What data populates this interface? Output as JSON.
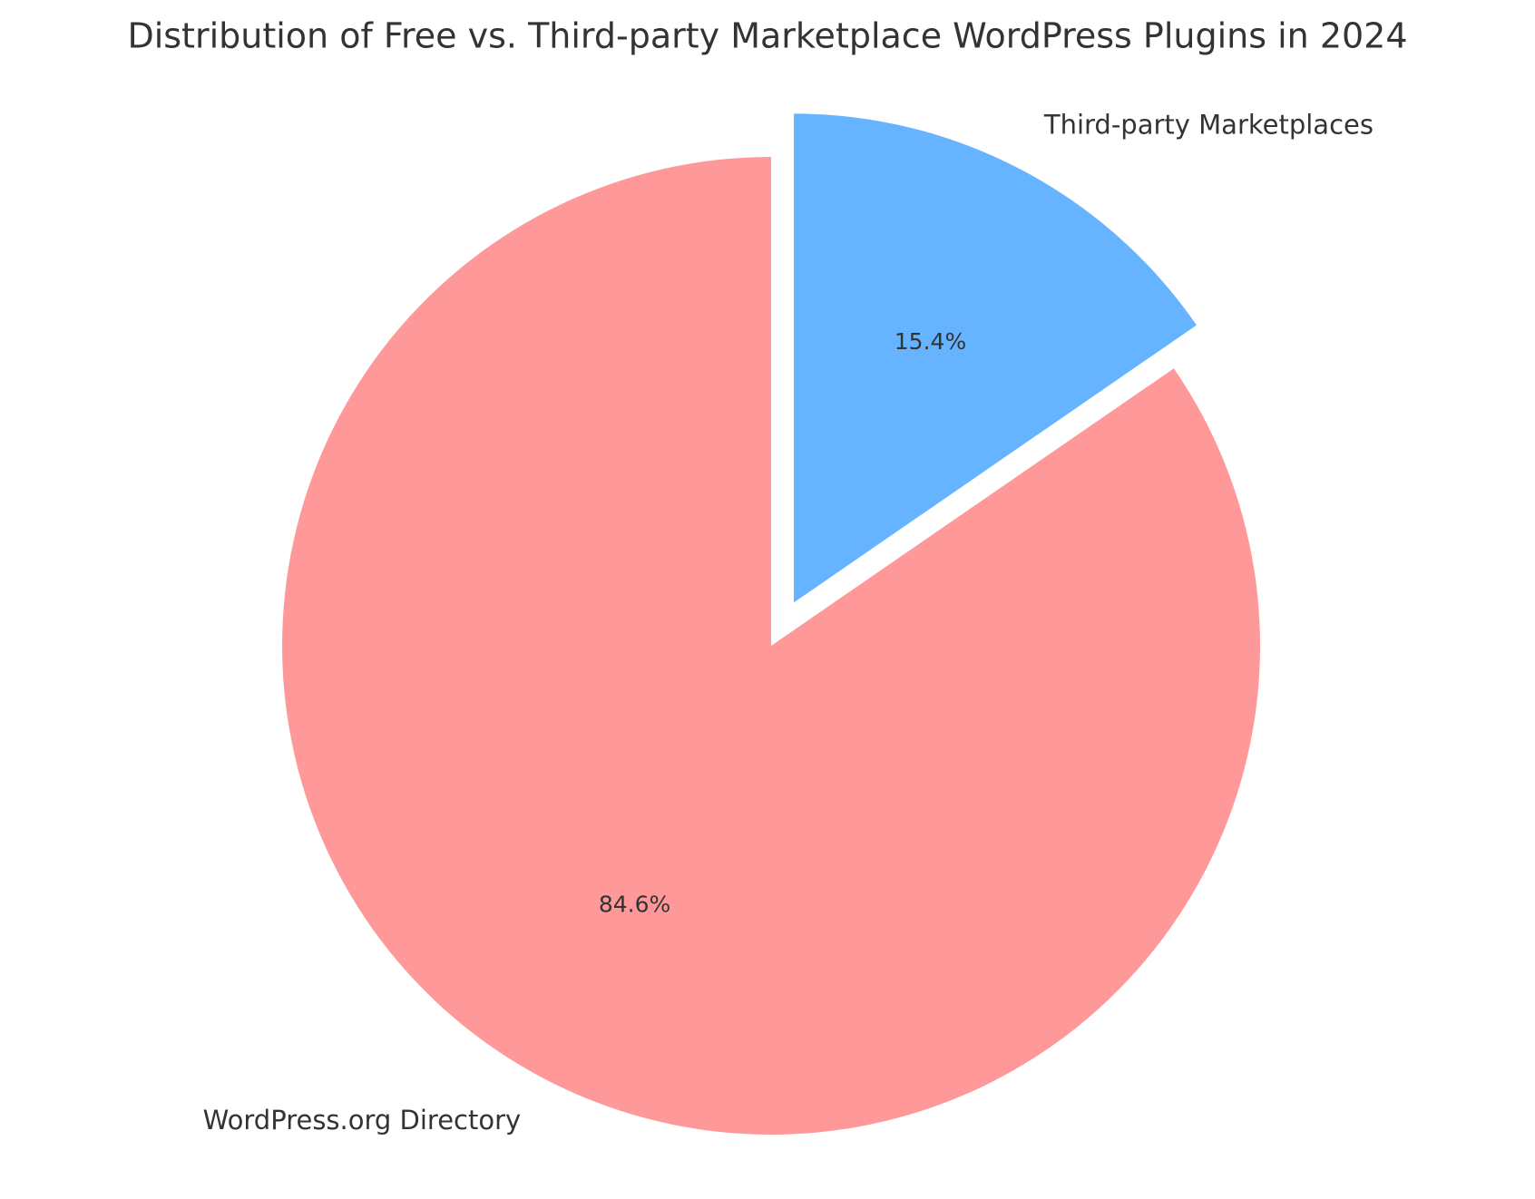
{
  "chart_data": {
    "type": "pie",
    "title": "Distribution of Free vs. Third-party Marketplace WordPress Plugins in 2024",
    "categories": [
      "WordPress.org Directory",
      "Third-party Marketplaces"
    ],
    "values": [
      84.6,
      15.4
    ],
    "value_labels": [
      "84.6%",
      "15.4%"
    ],
    "colors": [
      "#ff9999",
      "#66b3ff"
    ],
    "explode": [
      0,
      0.1
    ],
    "start_angle": 90
  }
}
